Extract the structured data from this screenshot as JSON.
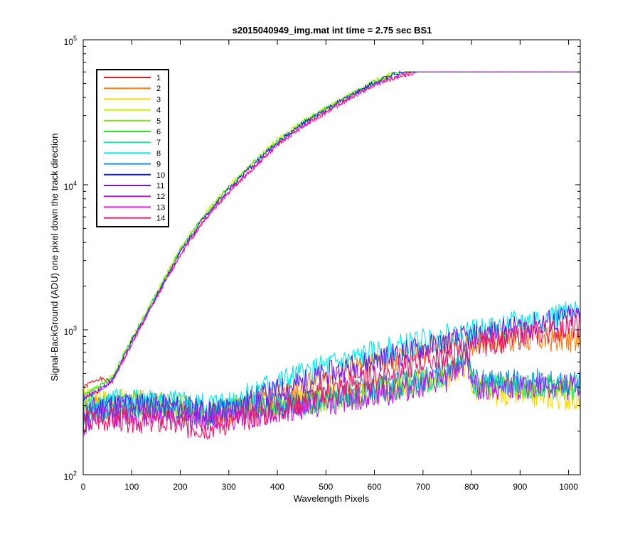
{
  "chart_data": {
    "type": "line",
    "title": "s2015040949_img.mat int time = 2.75 sec   BS1",
    "xlabel": "Wavelength Pixels",
    "ylabel": "Signal-BackGround (ADU) one pixel down the track direction",
    "xlim": [
      0,
      1024
    ],
    "ylim": [
      100,
      100000
    ],
    "yscale": "log",
    "grid": false,
    "legend_position": "top-left",
    "x_ticks": [
      "0",
      "100",
      "200",
      "300",
      "400",
      "500",
      "600",
      "700",
      "800",
      "900",
      "1000"
    ],
    "y_ticks": [
      {
        "base": "10",
        "exp": "2"
      },
      {
        "base": "10",
        "exp": "3"
      },
      {
        "base": "10",
        "exp": "4"
      },
      {
        "base": "10",
        "exp": "5"
      }
    ],
    "series": [
      {
        "name": "1",
        "color": "#e6191c",
        "kind": "high",
        "values": [
          [
            0,
            400
          ],
          [
            30,
            460
          ],
          [
            60,
            440
          ],
          [
            100,
            800
          ],
          [
            160,
            1900
          ],
          [
            200,
            3300
          ],
          [
            250,
            5800
          ],
          [
            300,
            9000
          ],
          [
            350,
            13000
          ],
          [
            400,
            19000
          ],
          [
            450,
            25000
          ],
          [
            500,
            32000
          ],
          [
            550,
            40000
          ],
          [
            600,
            49000
          ],
          [
            650,
            56000
          ],
          [
            680,
            60000
          ],
          [
            1024,
            60000
          ]
        ]
      },
      {
        "name": "2",
        "color": "#ff7f0e",
        "kind": "low",
        "values": [
          [
            0,
            300
          ],
          [
            50,
            290
          ],
          [
            100,
            280
          ],
          [
            150,
            290
          ],
          [
            200,
            270
          ],
          [
            250,
            250
          ],
          [
            300,
            270
          ],
          [
            350,
            310
          ],
          [
            400,
            350
          ],
          [
            450,
            400
          ],
          [
            500,
            460
          ],
          [
            550,
            520
          ],
          [
            600,
            580
          ],
          [
            650,
            640
          ],
          [
            700,
            700
          ],
          [
            750,
            760
          ],
          [
            800,
            810
          ],
          [
            850,
            850
          ],
          [
            900,
            860
          ],
          [
            950,
            860
          ],
          [
            1000,
            850
          ],
          [
            1024,
            850
          ]
        ]
      },
      {
        "name": "3",
        "color": "#ffd700",
        "kind": "low",
        "values": [
          [
            0,
            330
          ],
          [
            50,
            330
          ],
          [
            100,
            320
          ],
          [
            150,
            310
          ],
          [
            200,
            300
          ],
          [
            250,
            270
          ],
          [
            300,
            290
          ],
          [
            350,
            300
          ],
          [
            400,
            310
          ],
          [
            450,
            320
          ],
          [
            500,
            340
          ],
          [
            550,
            360
          ],
          [
            600,
            380
          ],
          [
            650,
            410
          ],
          [
            700,
            440
          ],
          [
            750,
            480
          ],
          [
            790,
            600
          ],
          [
            805,
            390
          ],
          [
            850,
            370
          ],
          [
            900,
            360
          ],
          [
            950,
            350
          ],
          [
            1000,
            340
          ],
          [
            1024,
            330
          ]
        ]
      },
      {
        "name": "4",
        "color": "#c0f000",
        "kind": "high",
        "values": [
          [
            0,
            360
          ],
          [
            30,
            400
          ],
          [
            60,
            480
          ],
          [
            100,
            870
          ],
          [
            160,
            2050
          ],
          [
            200,
            3600
          ],
          [
            250,
            6300
          ],
          [
            300,
            9800
          ],
          [
            350,
            14200
          ],
          [
            400,
            20500
          ],
          [
            450,
            27000
          ],
          [
            500,
            34000
          ],
          [
            550,
            42000
          ],
          [
            600,
            52000
          ],
          [
            640,
            59000
          ],
          [
            660,
            60000
          ],
          [
            1024,
            60000
          ]
        ]
      },
      {
        "name": "5",
        "color": "#7ee81a",
        "kind": "low",
        "values": [
          [
            0,
            280
          ],
          [
            50,
            300
          ],
          [
            100,
            310
          ],
          [
            150,
            300
          ],
          [
            200,
            290
          ],
          [
            250,
            270
          ],
          [
            300,
            280
          ],
          [
            350,
            290
          ],
          [
            400,
            300
          ],
          [
            450,
            310
          ],
          [
            500,
            330
          ],
          [
            550,
            350
          ],
          [
            600,
            380
          ],
          [
            650,
            410
          ],
          [
            700,
            450
          ],
          [
            750,
            500
          ],
          [
            790,
            680
          ],
          [
            805,
            420
          ],
          [
            850,
            410
          ],
          [
            900,
            410
          ],
          [
            950,
            400
          ],
          [
            1000,
            400
          ],
          [
            1024,
            390
          ]
        ]
      },
      {
        "name": "6",
        "color": "#1ee81a",
        "kind": "high",
        "values": [
          [
            0,
            360
          ],
          [
            30,
            400
          ],
          [
            60,
            470
          ],
          [
            100,
            860
          ],
          [
            160,
            2000
          ],
          [
            200,
            3550
          ],
          [
            250,
            6200
          ],
          [
            300,
            9600
          ],
          [
            350,
            14000
          ],
          [
            400,
            20000
          ],
          [
            450,
            26500
          ],
          [
            500,
            33500
          ],
          [
            550,
            41500
          ],
          [
            600,
            51000
          ],
          [
            640,
            58500
          ],
          [
            660,
            60000
          ],
          [
            1024,
            60000
          ]
        ]
      },
      {
        "name": "7",
        "color": "#1ee89e",
        "kind": "low",
        "values": [
          [
            0,
            260
          ],
          [
            50,
            290
          ],
          [
            100,
            300
          ],
          [
            150,
            300
          ],
          [
            200,
            290
          ],
          [
            250,
            270
          ],
          [
            300,
            280
          ],
          [
            350,
            290
          ],
          [
            400,
            300
          ],
          [
            450,
            310
          ],
          [
            500,
            330
          ],
          [
            550,
            350
          ],
          [
            600,
            380
          ],
          [
            650,
            410
          ],
          [
            700,
            440
          ],
          [
            750,
            490
          ],
          [
            790,
            660
          ],
          [
            805,
            420
          ],
          [
            850,
            420
          ],
          [
            900,
            420
          ],
          [
            950,
            410
          ],
          [
            1000,
            400
          ],
          [
            1024,
            400
          ]
        ]
      },
      {
        "name": "8",
        "color": "#00e8e8",
        "kind": "low",
        "values": [
          [
            0,
            300
          ],
          [
            50,
            320
          ],
          [
            100,
            330
          ],
          [
            150,
            320
          ],
          [
            200,
            310
          ],
          [
            250,
            300
          ],
          [
            300,
            320
          ],
          [
            350,
            380
          ],
          [
            400,
            430
          ],
          [
            450,
            490
          ],
          [
            500,
            560
          ],
          [
            550,
            620
          ],
          [
            600,
            690
          ],
          [
            650,
            760
          ],
          [
            700,
            830
          ],
          [
            750,
            900
          ],
          [
            800,
            960
          ],
          [
            850,
            1030
          ],
          [
            900,
            1120
          ],
          [
            950,
            1200
          ],
          [
            1000,
            1280
          ],
          [
            1024,
            1300
          ]
        ]
      },
      {
        "name": "9",
        "color": "#1a8ee8",
        "kind": "low",
        "values": [
          [
            0,
            240
          ],
          [
            50,
            280
          ],
          [
            100,
            300
          ],
          [
            150,
            300
          ],
          [
            200,
            290
          ],
          [
            250,
            270
          ],
          [
            300,
            280
          ],
          [
            350,
            290
          ],
          [
            400,
            300
          ],
          [
            450,
            320
          ],
          [
            500,
            340
          ],
          [
            550,
            360
          ],
          [
            600,
            390
          ],
          [
            650,
            420
          ],
          [
            700,
            460
          ],
          [
            750,
            510
          ],
          [
            790,
            700
          ],
          [
            805,
            440
          ],
          [
            850,
            440
          ],
          [
            900,
            440
          ],
          [
            950,
            440
          ],
          [
            1000,
            430
          ],
          [
            1024,
            430
          ]
        ]
      },
      {
        "name": "10",
        "color": "#1a1ae8",
        "kind": "high",
        "values": [
          [
            0,
            330
          ],
          [
            30,
            380
          ],
          [
            60,
            450
          ],
          [
            100,
            830
          ],
          [
            160,
            1950
          ],
          [
            200,
            3450
          ],
          [
            250,
            6050
          ],
          [
            300,
            9400
          ],
          [
            350,
            13700
          ],
          [
            400,
            19700
          ],
          [
            450,
            26000
          ],
          [
            500,
            33000
          ],
          [
            550,
            41000
          ],
          [
            600,
            50500
          ],
          [
            640,
            58000
          ],
          [
            665,
            60000
          ],
          [
            1024,
            60000
          ]
        ]
      },
      {
        "name": "11",
        "color": "#6a1ae8",
        "kind": "low",
        "values": [
          [
            0,
            270
          ],
          [
            50,
            300
          ],
          [
            100,
            310
          ],
          [
            150,
            300
          ],
          [
            200,
            290
          ],
          [
            250,
            270
          ],
          [
            300,
            280
          ],
          [
            350,
            330
          ],
          [
            400,
            380
          ],
          [
            450,
            430
          ],
          [
            500,
            490
          ],
          [
            550,
            550
          ],
          [
            600,
            610
          ],
          [
            650,
            680
          ],
          [
            700,
            750
          ],
          [
            750,
            820
          ],
          [
            800,
            890
          ],
          [
            850,
            960
          ],
          [
            900,
            1040
          ],
          [
            950,
            1120
          ],
          [
            1000,
            1210
          ],
          [
            1024,
            1250
          ]
        ]
      },
      {
        "name": "12",
        "color": "#b41ae8",
        "kind": "low",
        "values": [
          [
            0,
            220
          ],
          [
            50,
            250
          ],
          [
            100,
            260
          ],
          [
            150,
            260
          ],
          [
            200,
            250
          ],
          [
            250,
            240
          ],
          [
            300,
            250
          ],
          [
            350,
            260
          ],
          [
            400,
            270
          ],
          [
            450,
            290
          ],
          [
            500,
            310
          ],
          [
            550,
            330
          ],
          [
            600,
            350
          ],
          [
            650,
            380
          ],
          [
            700,
            410
          ],
          [
            750,
            450
          ],
          [
            790,
            620
          ],
          [
            805,
            400
          ],
          [
            850,
            400
          ],
          [
            900,
            400
          ],
          [
            950,
            400
          ],
          [
            1000,
            400
          ],
          [
            1024,
            400
          ]
        ]
      },
      {
        "name": "13",
        "color": "#e81ae8",
        "kind": "high",
        "values": [
          [
            0,
            340
          ],
          [
            30,
            380
          ],
          [
            60,
            440
          ],
          [
            100,
            800
          ],
          [
            160,
            1880
          ],
          [
            200,
            3300
          ],
          [
            250,
            5750
          ],
          [
            300,
            8900
          ],
          [
            350,
            13000
          ],
          [
            400,
            18800
          ],
          [
            450,
            24800
          ],
          [
            500,
            31500
          ],
          [
            550,
            39500
          ],
          [
            600,
            48500
          ],
          [
            650,
            56000
          ],
          [
            690,
            60000
          ],
          [
            1024,
            60000
          ]
        ]
      },
      {
        "name": "14",
        "color": "#e81a6e",
        "kind": "low",
        "values": [
          [
            0,
            230
          ],
          [
            50,
            240
          ],
          [
            100,
            240
          ],
          [
            150,
            230
          ],
          [
            200,
            220
          ],
          [
            250,
            210
          ],
          [
            300,
            230
          ],
          [
            350,
            250
          ],
          [
            400,
            280
          ],
          [
            450,
            320
          ],
          [
            500,
            370
          ],
          [
            550,
            420
          ],
          [
            600,
            470
          ],
          [
            650,
            530
          ],
          [
            700,
            600
          ],
          [
            750,
            660
          ],
          [
            800,
            740
          ],
          [
            850,
            820
          ],
          [
            900,
            900
          ],
          [
            950,
            960
          ],
          [
            1000,
            1030
          ],
          [
            1024,
            1060
          ]
        ]
      }
    ]
  }
}
